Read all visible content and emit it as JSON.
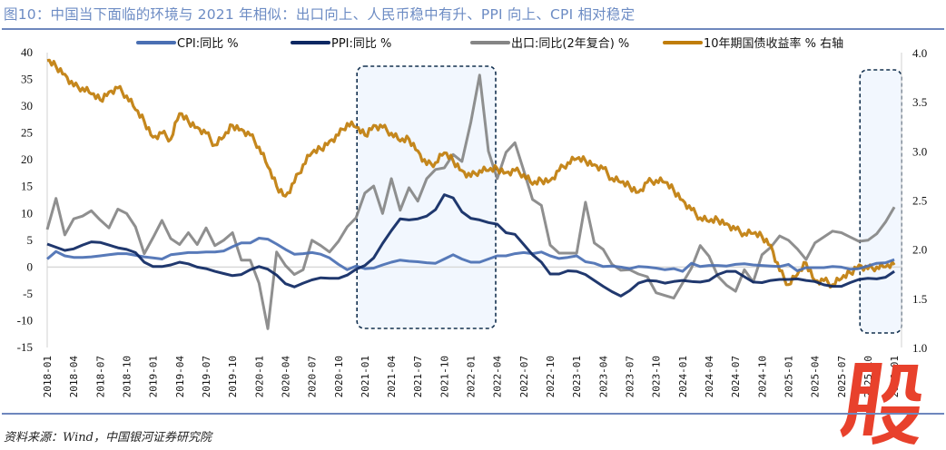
{
  "title": "图10：中国当下面临的环境与 2021 年相似：出口向上、人民币稳中有升、PPI 向上、CPI 相对稳定",
  "source": "资料来源：Wind，中国银河证券研究院",
  "watermark": "股",
  "chart_data": {
    "type": "line",
    "start": "2018-01",
    "frequency": "monthly",
    "x_tick_labels": [
      "2018-01",
      "2018-04",
      "2018-07",
      "2018-10",
      "2019-01",
      "2019-04",
      "2019-07",
      "2019-10",
      "2020-01",
      "2020-04",
      "2020-07",
      "2020-10",
      "2021-01",
      "2021-04",
      "2021-07",
      "2021-10",
      "2022-01",
      "2022-04",
      "2022-07",
      "2022-10",
      "2023-01",
      "2023-04",
      "2023-07",
      "2023-10",
      "2024-01",
      "2024-04",
      "2024-07",
      "2024-10",
      "2025-01",
      "2025-04",
      "2025-07",
      "2025-10",
      "2026-01"
    ],
    "y_left": {
      "min": -15,
      "max": 40,
      "ticks": [
        "40",
        "35",
        "30",
        "25",
        "20",
        "15",
        "10",
        "5",
        "0",
        "-5",
        "-10",
        "-15"
      ]
    },
    "y_right": {
      "min": 1.0,
      "max": 4.0,
      "ticks": [
        "4.0",
        "3.5",
        "3.0",
        "2.5",
        "2.0",
        "1.5",
        "1.0"
      ]
    },
    "grid": "zero-line only",
    "legend": "top",
    "highlights": [
      {
        "from": "2020-12",
        "to": "2022-03"
      },
      {
        "from": "2025-09",
        "to": "2026-01"
      }
    ],
    "series": [
      {
        "name": "CPI:同比 %",
        "axis": "left",
        "color": "#4a6fb3",
        "values": [
          1.5,
          2.9,
          2.1,
          1.8,
          1.8,
          1.9,
          2.1,
          2.3,
          2.5,
          2.5,
          2.2,
          1.9,
          1.7,
          1.5,
          2.3,
          2.5,
          2.7,
          2.7,
          2.8,
          2.8,
          3.0,
          3.8,
          4.5,
          4.5,
          5.4,
          5.2,
          4.3,
          3.3,
          2.4,
          2.5,
          2.7,
          2.4,
          1.7,
          0.5,
          -0.5,
          0.2,
          -0.3,
          -0.2,
          0.4,
          0.9,
          1.3,
          1.1,
          1.0,
          0.8,
          0.7,
          1.5,
          2.3,
          1.5,
          0.9,
          0.9,
          1.5,
          2.1,
          2.1,
          2.5,
          2.7,
          2.5,
          2.8,
          2.1,
          1.6,
          1.8,
          2.1,
          1.0,
          0.7,
          0.1,
          0.2,
          0.0,
          -0.3,
          0.1,
          0.0,
          -0.2,
          -0.5,
          -0.3,
          -0.8,
          0.7,
          0.1,
          0.3,
          0.3,
          0.2,
          0.5,
          0.6,
          0.4,
          0.3,
          0.2,
          0.1,
          0.5,
          -0.7,
          -0.1,
          -0.1,
          -0.1,
          0.1,
          0.0,
          -0.4,
          -0.3,
          0.2,
          0.7,
          0.8,
          1.4
        ]
      },
      {
        "name": "PPI:同比 %",
        "axis": "left",
        "color": "#0d2762",
        "values": [
          4.3,
          3.7,
          3.1,
          3.4,
          4.1,
          4.7,
          4.6,
          4.1,
          3.6,
          3.3,
          2.7,
          0.9,
          0.1,
          0.1,
          0.4,
          0.9,
          0.6,
          0.0,
          -0.3,
          -0.8,
          -1.2,
          -1.6,
          -1.4,
          -0.5,
          0.1,
          -0.4,
          -1.5,
          -3.1,
          -3.7,
          -3.0,
          -2.4,
          -2.0,
          -2.1,
          -2.1,
          -1.5,
          -0.4,
          0.3,
          1.7,
          4.4,
          6.8,
          9.0,
          8.8,
          9.0,
          9.5,
          10.7,
          13.5,
          12.9,
          10.3,
          9.1,
          8.8,
          8.3,
          8.0,
          6.4,
          6.1,
          4.2,
          2.3,
          0.9,
          -1.3,
          -1.3,
          -0.7,
          -0.8,
          -1.4,
          -2.5,
          -3.6,
          -4.6,
          -5.4,
          -4.4,
          -3.0,
          -2.5,
          -2.6,
          -3.0,
          -2.7,
          -2.5,
          -2.7,
          -2.8,
          -2.5,
          -1.4,
          -0.8,
          -0.8,
          -1.8,
          -2.8,
          -2.9,
          -2.5,
          -2.3,
          -2.3,
          -2.2,
          -2.5,
          -2.7,
          -3.3,
          -3.6,
          -3.6,
          -2.9,
          -2.3,
          -2.1,
          -2.2,
          -1.9,
          -0.8
        ]
      },
      {
        "name": "出口:同比(2年复合) %",
        "axis": "left",
        "color": "#858585",
        "values": [
          7.0,
          12.8,
          6.0,
          9.0,
          9.5,
          10.5,
          8.8,
          7.3,
          10.8,
          10.0,
          7.5,
          2.5,
          5.5,
          8.7,
          5.3,
          4.2,
          6.4,
          4.2,
          7.3,
          4.0,
          5.0,
          6.4,
          1.3,
          1.3,
          -3.0,
          -11.5,
          2.8,
          0.3,
          -1.4,
          -0.5,
          5.0,
          4.0,
          2.8,
          4.8,
          7.5,
          9.2,
          13.8,
          15.1,
          10.0,
          16.5,
          10.6,
          14.8,
          12.3,
          16.5,
          18.2,
          18.5,
          21.0,
          19.7,
          27.0,
          35.8,
          21.6,
          16.5,
          21.4,
          23.2,
          18.0,
          12.6,
          11.5,
          4.1,
          2.6,
          2.6,
          2.6,
          12.1,
          4.5,
          3.3,
          0.5,
          -0.6,
          -0.5,
          -1.3,
          -1.8,
          -4.8,
          -5.3,
          -5.8,
          -3.0,
          -0.2,
          4.0,
          2.0,
          -1.7,
          -3.4,
          -4.5,
          -0.5,
          -2.8,
          2.3,
          3.7,
          5.8,
          5.0,
          3.4,
          1.4,
          4.5,
          5.6,
          6.7,
          6.4,
          5.6,
          4.8,
          5.0,
          6.2,
          8.4,
          11.2
        ]
      },
      {
        "name": "10年期国债收益率 % 右轴",
        "axis": "right",
        "color": "#c07d0a",
        "values": [
          3.92,
          3.86,
          3.78,
          3.66,
          3.64,
          3.58,
          3.52,
          3.6,
          3.64,
          3.56,
          3.42,
          3.3,
          3.14,
          3.18,
          3.12,
          3.38,
          3.3,
          3.24,
          3.18,
          3.06,
          3.14,
          3.26,
          3.22,
          3.16,
          3.04,
          2.84,
          2.64,
          2.54,
          2.68,
          2.86,
          2.98,
          3.02,
          3.1,
          3.16,
          3.28,
          3.24,
          3.16,
          3.26,
          3.24,
          3.18,
          3.1,
          3.12,
          3.0,
          2.86,
          2.88,
          2.98,
          2.9,
          2.8,
          2.74,
          2.8,
          2.8,
          2.82,
          2.78,
          2.8,
          2.76,
          2.66,
          2.7,
          2.7,
          2.8,
          2.88,
          2.92,
          2.9,
          2.86,
          2.82,
          2.72,
          2.68,
          2.64,
          2.58,
          2.68,
          2.7,
          2.68,
          2.6,
          2.5,
          2.4,
          2.32,
          2.28,
          2.3,
          2.26,
          2.2,
          2.16,
          2.16,
          2.13,
          2.04,
          1.78,
          1.64,
          1.74,
          1.86,
          1.68,
          1.68,
          1.64,
          1.7,
          1.76,
          1.84,
          1.8,
          1.82,
          1.82,
          1.84
        ]
      }
    ]
  }
}
